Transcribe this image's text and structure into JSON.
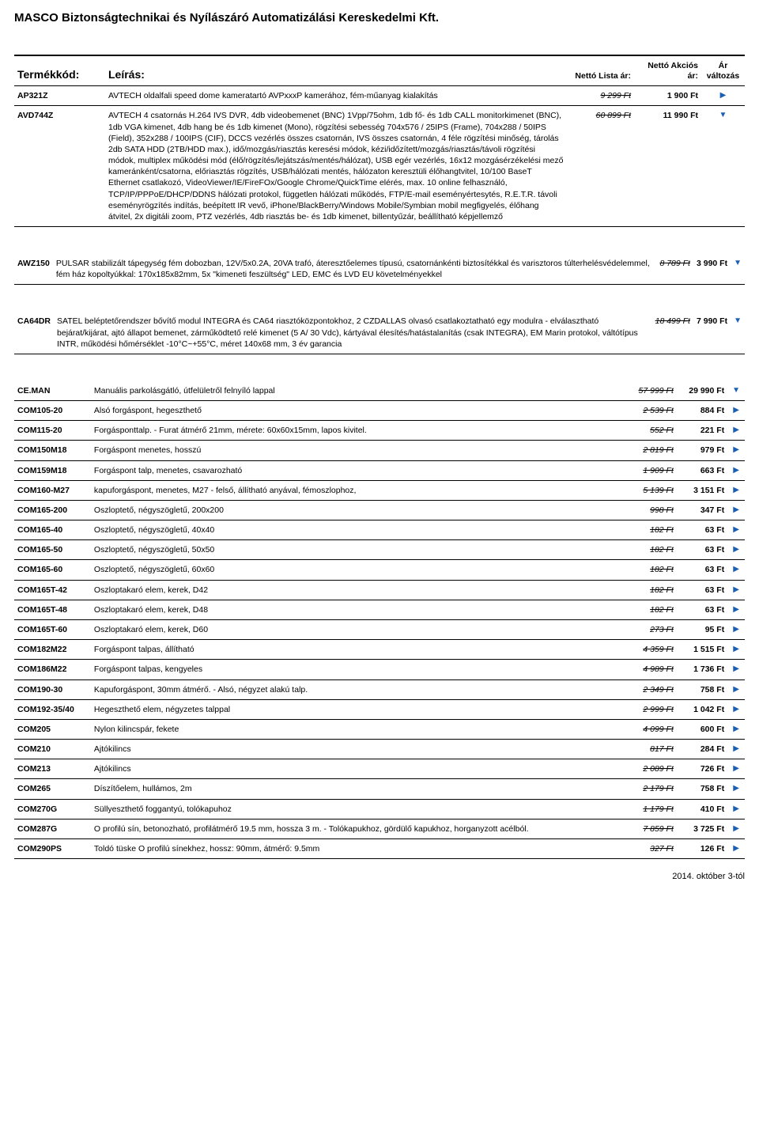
{
  "page_title": "MASCO Biztonságtechnikai és Nyílászáró Automatizálási Kereskedelmi Kft.",
  "footer_date": "2014. október 3-tól",
  "headers": {
    "code": "Termékkód:",
    "desc": "Leírás:",
    "list": "Nettó Lista ár:",
    "sale": "Nettó Akciós ár:",
    "chg": "Ár változás"
  },
  "glyph_up": "▶",
  "glyph_down": "▼",
  "block1": [
    {
      "code": "AP321Z",
      "desc": "AVTECH oldalfali speed dome kameratartó AVPxxxP kamerához, fém-műanyag kialakítás",
      "list": "9 299 Ft",
      "sale": "1 900 Ft",
      "dir": "up"
    },
    {
      "code": "AVD744Z",
      "desc": "AVTECH 4 csatornás H.264 IVS DVR, 4db videobemenet (BNC) 1Vpp/75ohm, 1db fő- és 1db CALL monitorkimenet (BNC), 1db VGA kimenet, 4db hang be és 1db kimenet (Mono), rögzítési sebesség 704x576 / 25IPS (Frame), 704x288 / 50IPS (Field), 352x288 / 100IPS (CIF), DCCS vezérlés összes csatornán, IVS összes csatornán, 4 féle rögzítési minőség, tárolás 2db SATA HDD (2TB/HDD max.), idő/mozgás/riasztás keresési módok, kézi/időzített/mozgás/riasztás/távoli rögzítési módok, multiplex működési mód (élő/rögzítés/lejátszás/mentés/hálózat), USB egér vezérlés, 16x12 mozgásérzékelési mező kameránként/csatorna, előriasztás rögzítés, USB/hálózati mentés, hálózaton keresztüli élőhangtvitel, 10/100 BaseT Ethernet csatlakozó, VideoViewer/IE/FireFOx/Google Chrome/QuickTime elérés, max. 10 online felhasználó, TCP/IP/PPPoE/DHCP/DDNS hálózati protokol, független hálózati működés, FTP/E-mail eseményértesytés, R.E.T.R. távoli eseményrögzítés indítás, beépített IR vevő, iPhone/BlackBerry/Windows Mobile/Symbian mobil megfigyelés, élőhang átvitel, 2x digitáli zoom, PTZ vezérlés, 4db riasztás be- és 1db kimenet, billentyűzár, beállítható képjellemző",
      "list": "60 899 Ft",
      "sale": "11 990 Ft",
      "dir": "down"
    }
  ],
  "block2": [
    {
      "code": "AWZ150",
      "desc": "PULSAR stabilizált tápegység fém dobozban, 12V/5x0.2A, 20VA trafó, áteresztőelemes típusú, csatornánkénti biztosítékkal és varisztoros túlterhelésvédelemmel, fém ház kopoltyúkkal: 170x185x82mm, 5x \"kimeneti feszültség\" LED, EMC és LVD EU követelményekkel",
      "list": "8 789 Ft",
      "sale": "3 990 Ft",
      "dir": "down"
    }
  ],
  "block3": [
    {
      "code": "CA64DR",
      "desc": "SATEL beléptetőrendszer bővítő modul INTEGRA és CA64 riasztóközpontokhoz, 2 CZDALLAS olvasó csatlakoztatható egy modulra  - elválasztható bejárat/kijárat, ajtó állapot bemenet, zárműködtető relé kimenet (5 A/ 30 Vdc), kártyával élesítés/hatástalanítás (csak INTEGRA), EM Marin protokol, váltótípus INTR, működési hőmérséklet -10°C~+55°C, méret 140x68 mm, 3 év garancia",
      "list": "18 499 Ft",
      "sale": "7 990 Ft",
      "dir": "down"
    }
  ],
  "block4": [
    {
      "code": "CE.MAN",
      "desc": "Manuális parkolásgátló, útfelületről felnyíló lappal",
      "list": "57 999 Ft",
      "sale": "29 990 Ft",
      "dir": "down"
    },
    {
      "code": "COM105-20",
      "desc": "Alsó forgáspont, hegeszthető",
      "list": "2 539 Ft",
      "sale": "884 Ft",
      "dir": "up"
    },
    {
      "code": "COM115-20",
      "desc": "Forgásponttalp. - Furat átmérő 21mm, mérete: 60x60x15mm, lapos kivitel.",
      "list": "552 Ft",
      "sale": "221 Ft",
      "dir": "up"
    },
    {
      "code": "COM150M18",
      "desc": "Forgáspont menetes, hosszú",
      "list": "2 819 Ft",
      "sale": "979 Ft",
      "dir": "up"
    },
    {
      "code": "COM159M18",
      "desc": "Forgáspont talp, menetes, csavarozható",
      "list": "1 909 Ft",
      "sale": "663 Ft",
      "dir": "up"
    },
    {
      "code": "COM160-M27",
      "desc": "kapuforgáspont, menetes, M27 - felső, állítható anyával, fémoszlophoz,",
      "list": "5 139 Ft",
      "sale": "3 151 Ft",
      "dir": "up"
    },
    {
      "code": "COM165-200",
      "desc": "Oszloptető, négyszögletű, 200x200",
      "list": "998 Ft",
      "sale": "347 Ft",
      "dir": "up"
    },
    {
      "code": "COM165-40",
      "desc": "Oszloptető, négyszögletű, 40x40",
      "list": "182 Ft",
      "sale": "63 Ft",
      "dir": "up"
    },
    {
      "code": "COM165-50",
      "desc": "Oszloptető, négyszögletű, 50x50",
      "list": "182 Ft",
      "sale": "63 Ft",
      "dir": "up"
    },
    {
      "code": "COM165-60",
      "desc": "Oszloptető, négyszögletű, 60x60",
      "list": "182 Ft",
      "sale": "63 Ft",
      "dir": "up"
    },
    {
      "code": "COM165T-42",
      "desc": "Oszloptakaró elem, kerek, D42",
      "list": "182 Ft",
      "sale": "63 Ft",
      "dir": "up"
    },
    {
      "code": "COM165T-48",
      "desc": "Oszloptakaró elem, kerek, D48",
      "list": "182 Ft",
      "sale": "63 Ft",
      "dir": "up"
    },
    {
      "code": "COM165T-60",
      "desc": "Oszloptakaró elem, kerek, D60",
      "list": "273 Ft",
      "sale": "95 Ft",
      "dir": "up"
    },
    {
      "code": "COM182M22",
      "desc": "Forgáspont talpas, állítható",
      "list": "4 359 Ft",
      "sale": "1 515 Ft",
      "dir": "up"
    },
    {
      "code": "COM186M22",
      "desc": "Forgáspont talpas, kengyeles",
      "list": "4 989 Ft",
      "sale": "1 736 Ft",
      "dir": "up"
    },
    {
      "code": "COM190-30",
      "desc": "Kapuforgáspont, 30mm átmérő. - Alsó, négyzet alakú talp.",
      "list": "2 349 Ft",
      "sale": "758 Ft",
      "dir": "up"
    },
    {
      "code": "COM192-35/40",
      "desc": "Hegeszthető elem, négyzetes talppal",
      "list": "2 999 Ft",
      "sale": "1 042 Ft",
      "dir": "up"
    },
    {
      "code": "COM205",
      "desc": "Nylon kilincspár, fekete",
      "list": "4 099 Ft",
      "sale": "600 Ft",
      "dir": "up"
    },
    {
      "code": "COM210",
      "desc": "Ajtókilincs",
      "list": "817 Ft",
      "sale": "284 Ft",
      "dir": "up"
    },
    {
      "code": "COM213",
      "desc": "Ajtókilincs",
      "list": "2 089 Ft",
      "sale": "726 Ft",
      "dir": "up"
    },
    {
      "code": "COM265",
      "desc": "Díszítőelem, hullámos, 2m",
      "list": "2 179 Ft",
      "sale": "758 Ft",
      "dir": "up"
    },
    {
      "code": "COM270G",
      "desc": "Süllyeszthető foggantyú, tolókapuhoz",
      "list": "1 179 Ft",
      "sale": "410 Ft",
      "dir": "up"
    },
    {
      "code": "COM287G",
      "desc": "O profilú sín, betonozható, profilátmérő 19.5 mm, hossza 3 m. - Tolókapukhoz, gördülő kapukhoz, horganyzott acélból.",
      "list": "7 859 Ft",
      "sale": "3 725 Ft",
      "dir": "up"
    },
    {
      "code": "COM290PS",
      "desc": "Toldó tüske O profilú sínekhez, hossz: 90mm, átmérő: 9.5mm",
      "list": "327 Ft",
      "sale": "126 Ft",
      "dir": "up"
    }
  ]
}
